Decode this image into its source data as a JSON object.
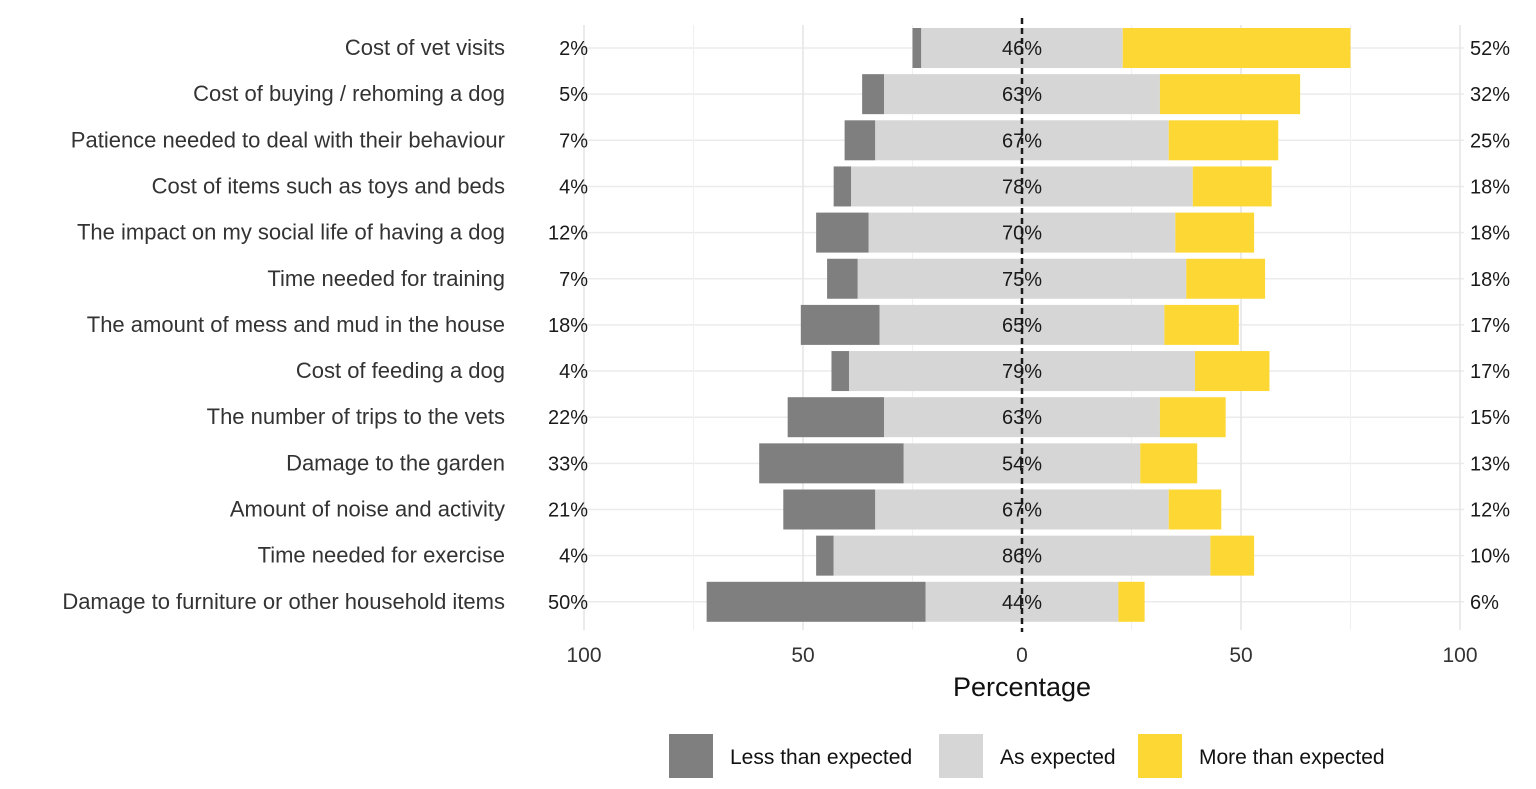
{
  "chart_data": {
    "type": "bar",
    "orientation": "horizontal",
    "stacked": "diverging",
    "xlabel": "Percentage",
    "xlim": [
      -100,
      100
    ],
    "x_ticks": [
      {
        "value": -100,
        "label": "100"
      },
      {
        "value": -50,
        "label": "50"
      },
      {
        "value": 0,
        "label": "0"
      },
      {
        "value": 50,
        "label": "50"
      },
      {
        "value": 100,
        "label": "100"
      }
    ],
    "grid": true,
    "legend_position": "bottom",
    "categories": [
      "Cost of vet visits",
      "Cost of buying / rehoming a dog",
      "Patience needed to deal with their behaviour",
      "Cost of items such as toys and beds",
      "The impact on my social life of having a dog",
      "Time needed for training",
      "The amount of mess and mud in the house",
      "Cost of feeding a dog",
      "The number of trips to the vets",
      "Damage to the garden",
      "Amount of noise and activity",
      "Time needed for exercise",
      "Damage to furniture or other household items"
    ],
    "series": [
      {
        "name": "Less than expected",
        "color": "#7f7f7f",
        "values": [
          2,
          5,
          7,
          4,
          12,
          7,
          18,
          4,
          22,
          33,
          21,
          4,
          50
        ]
      },
      {
        "name": "As expected",
        "color": "#d6d6d6",
        "values": [
          46,
          63,
          67,
          78,
          70,
          75,
          65,
          79,
          63,
          54,
          67,
          86,
          44
        ]
      },
      {
        "name": "More than expected",
        "color": "#fdd835",
        "values": [
          52,
          32,
          25,
          18,
          18,
          18,
          17,
          17,
          15,
          13,
          12,
          10,
          6
        ]
      }
    ],
    "left_labels": [
      "2%",
      "5%",
      "7%",
      "4%",
      "12%",
      "7%",
      "18%",
      "4%",
      "22%",
      "33%",
      "21%",
      "4%",
      "50%"
    ],
    "center_labels": [
      "46%",
      "63%",
      "67%",
      "78%",
      "70%",
      "75%",
      "65%",
      "79%",
      "63%",
      "54%",
      "67%",
      "86%",
      "44%"
    ],
    "right_labels": [
      "52%",
      "32%",
      "25%",
      "18%",
      "18%",
      "18%",
      "17%",
      "17%",
      "15%",
      "13%",
      "12%",
      "10%",
      "6%"
    ]
  }
}
